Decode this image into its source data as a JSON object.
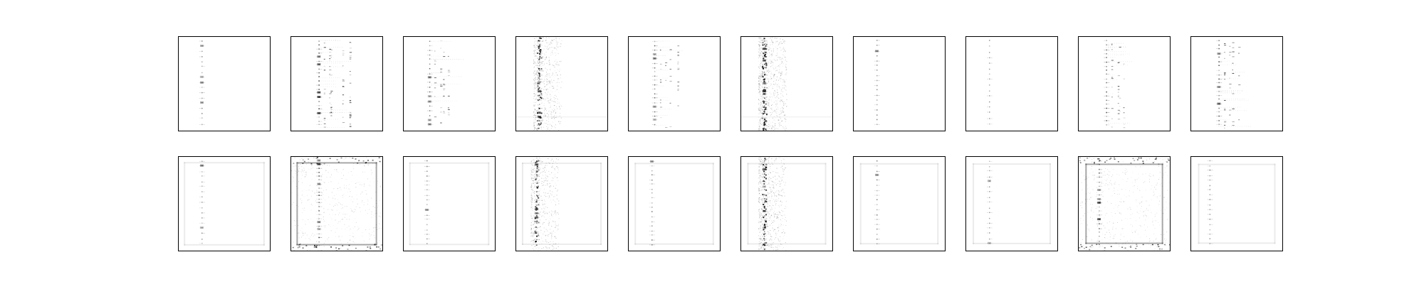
{
  "figure": {
    "rows": 2,
    "columns": 10,
    "image_style": "grayscale spectrogram-like sparse images",
    "background_color": "#ffffff",
    "frame_color": "#000000",
    "ink_color": "#000000"
  },
  "panels": [
    {
      "row": 0,
      "col": 0,
      "pattern": "single-column-sparse",
      "density": 0.35,
      "column_pos": 0.25,
      "frame_artifact": false
    },
    {
      "row": 0,
      "col": 1,
      "pattern": "multi-column-dense",
      "density": 0.85,
      "column_pos": 0.3,
      "frame_artifact": false
    },
    {
      "row": 0,
      "col": 2,
      "pattern": "multi-column-sparse",
      "density": 0.55,
      "column_pos": 0.28,
      "frame_artifact": false
    },
    {
      "row": 0,
      "col": 3,
      "pattern": "noisy-band",
      "density": 0.75,
      "column_pos": 0.25,
      "frame_artifact": false
    },
    {
      "row": 0,
      "col": 4,
      "pattern": "multi-column-sparse",
      "density": 0.65,
      "column_pos": 0.28,
      "frame_artifact": false
    },
    {
      "row": 0,
      "col": 5,
      "pattern": "noisy-band",
      "density": 0.9,
      "column_pos": 0.25,
      "frame_artifact": false
    },
    {
      "row": 0,
      "col": 6,
      "pattern": "single-column-sparse",
      "density": 0.4,
      "column_pos": 0.25,
      "frame_artifact": false
    },
    {
      "row": 0,
      "col": 7,
      "pattern": "single-column-sparse",
      "density": 0.25,
      "column_pos": 0.25,
      "frame_artifact": false
    },
    {
      "row": 0,
      "col": 8,
      "pattern": "multi-column-sparse",
      "density": 0.7,
      "column_pos": 0.3,
      "frame_artifact": false
    },
    {
      "row": 0,
      "col": 9,
      "pattern": "multi-column-sparse",
      "density": 0.75,
      "column_pos": 0.3,
      "frame_artifact": false
    },
    {
      "row": 1,
      "col": 0,
      "pattern": "single-column-sparse",
      "density": 0.35,
      "column_pos": 0.25,
      "frame_artifact": true
    },
    {
      "row": 1,
      "col": 1,
      "pattern": "textured-frame",
      "density": 0.9,
      "column_pos": 0.3,
      "frame_artifact": true
    },
    {
      "row": 1,
      "col": 2,
      "pattern": "single-column-sparse",
      "density": 0.4,
      "column_pos": 0.25,
      "frame_artifact": true
    },
    {
      "row": 1,
      "col": 3,
      "pattern": "noisy-band",
      "density": 0.6,
      "column_pos": 0.22,
      "frame_artifact": true
    },
    {
      "row": 1,
      "col": 4,
      "pattern": "single-column-sparse",
      "density": 0.55,
      "column_pos": 0.25,
      "frame_artifact": true
    },
    {
      "row": 1,
      "col": 5,
      "pattern": "noisy-band",
      "density": 0.75,
      "column_pos": 0.25,
      "frame_artifact": true
    },
    {
      "row": 1,
      "col": 6,
      "pattern": "single-column-sparse",
      "density": 0.45,
      "column_pos": 0.25,
      "frame_artifact": true
    },
    {
      "row": 1,
      "col": 7,
      "pattern": "single-column-sparse",
      "density": 0.3,
      "column_pos": 0.25,
      "frame_artifact": true
    },
    {
      "row": 1,
      "col": 8,
      "pattern": "textured-frame",
      "density": 0.7,
      "column_pos": 0.22,
      "frame_artifact": true
    },
    {
      "row": 1,
      "col": 9,
      "pattern": "single-column-sparse",
      "density": 0.4,
      "column_pos": 0.2,
      "frame_artifact": true
    }
  ]
}
